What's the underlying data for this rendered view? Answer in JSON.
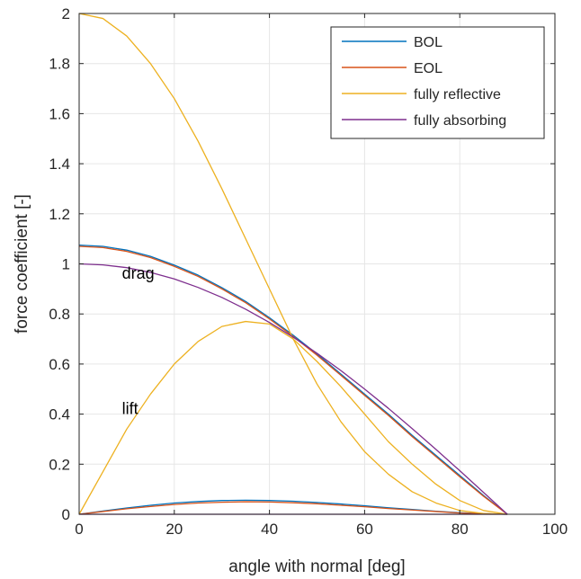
{
  "chart_data": {
    "type": "line",
    "title": "",
    "xlabel": "angle with normal [deg]",
    "ylabel": "force coefficient [-]",
    "xlim": [
      0,
      100
    ],
    "ylim": [
      0,
      2
    ],
    "xticks": [
      0,
      20,
      40,
      60,
      80,
      100
    ],
    "xtick_labels": [
      "0",
      "20",
      "40",
      "60",
      "80",
      "100"
    ],
    "yticks": [
      0,
      0.2,
      0.4,
      0.6,
      0.8,
      1,
      1.2,
      1.4,
      1.6,
      1.8,
      2
    ],
    "ytick_labels": [
      "0",
      "0.2",
      "0.4",
      "0.6",
      "0.8",
      "1",
      "1.2",
      "1.4",
      "1.6",
      "1.8",
      "2"
    ],
    "grid": true,
    "legend_position": "top-right",
    "annotations": [
      {
        "text": "drag",
        "x": 9,
        "y": 0.94
      },
      {
        "text": "lift",
        "x": 9,
        "y": 0.4
      }
    ],
    "x": [
      0,
      5,
      10,
      15,
      20,
      25,
      30,
      35,
      40,
      45,
      50,
      55,
      60,
      65,
      70,
      75,
      80,
      85,
      90
    ],
    "series": [
      {
        "name": "BOL",
        "color": "#0072BD",
        "drag": [
          1.075,
          1.07,
          1.055,
          1.03,
          0.995,
          0.955,
          0.905,
          0.85,
          0.785,
          0.715,
          0.64,
          0.56,
          0.48,
          0.4,
          0.315,
          0.235,
          0.155,
          0.075,
          0.0
        ],
        "lift": [
          0.0,
          0.013,
          0.025,
          0.036,
          0.045,
          0.051,
          0.055,
          0.056,
          0.055,
          0.052,
          0.047,
          0.041,
          0.034,
          0.026,
          0.019,
          0.012,
          0.006,
          0.002,
          0.0
        ]
      },
      {
        "name": "EOL",
        "color": "#D95319",
        "drag": [
          1.07,
          1.065,
          1.05,
          1.025,
          0.99,
          0.95,
          0.9,
          0.845,
          0.78,
          0.71,
          0.635,
          0.555,
          0.475,
          0.395,
          0.31,
          0.23,
          0.15,
          0.072,
          0.0
        ],
        "lift": [
          0.0,
          0.011,
          0.022,
          0.031,
          0.039,
          0.045,
          0.048,
          0.05,
          0.049,
          0.046,
          0.042,
          0.036,
          0.03,
          0.023,
          0.017,
          0.011,
          0.005,
          0.002,
          0.0
        ]
      },
      {
        "name": "fully reflective",
        "color": "#EDB120",
        "drag": [
          2.0,
          1.98,
          1.91,
          1.8,
          1.66,
          1.49,
          1.3,
          1.1,
          0.9,
          0.7,
          0.52,
          0.37,
          0.25,
          0.16,
          0.09,
          0.045,
          0.015,
          0.003,
          0.0
        ],
        "lift": [
          0.0,
          0.17,
          0.34,
          0.48,
          0.6,
          0.69,
          0.75,
          0.77,
          0.76,
          0.7,
          0.61,
          0.51,
          0.4,
          0.29,
          0.2,
          0.12,
          0.055,
          0.015,
          0.0
        ]
      },
      {
        "name": "fully absorbing",
        "color": "#7E2F8E",
        "drag": [
          1.0,
          0.996,
          0.985,
          0.966,
          0.94,
          0.906,
          0.866,
          0.819,
          0.766,
          0.707,
          0.643,
          0.574,
          0.5,
          0.423,
          0.342,
          0.259,
          0.174,
          0.087,
          0.0
        ],
        "lift": [
          0,
          0,
          0,
          0,
          0,
          0,
          0,
          0,
          0,
          0,
          0,
          0,
          0,
          0,
          0,
          0,
          0,
          0,
          0
        ]
      }
    ]
  }
}
